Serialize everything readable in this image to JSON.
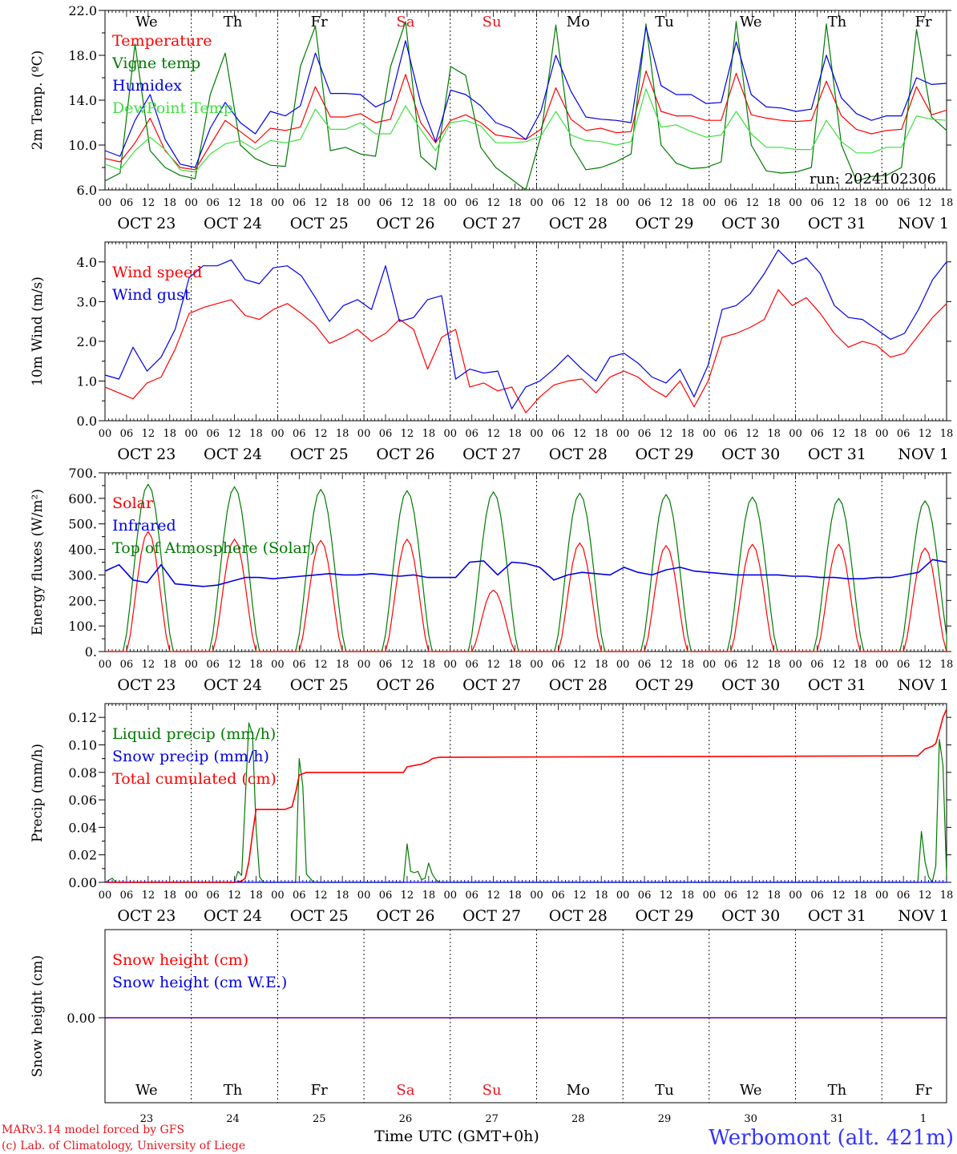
{
  "chart_data": [
    {
      "type": "line",
      "ylabel": "2m Temp. (ºC)",
      "ylim": [
        6.0,
        22.0
      ],
      "yticks": [
        "6.0",
        "10.0",
        "14.0",
        "18.0",
        "22.0"
      ],
      "day_names": [
        "We",
        "Th",
        "Fr",
        "Sa",
        "Su",
        "Mo",
        "Tu",
        "We",
        "Th",
        "Fr"
      ],
      "weekend_color": "#e8141e",
      "run_label": "run: 2024102306",
      "legend_position": "top-left",
      "series": [
        {
          "name": "Temperature",
          "color": "#ff0000",
          "values": [
            8.8,
            8.5,
            10.2,
            12.4,
            9.5,
            8.0,
            7.8,
            10.0,
            12.2,
            11.2,
            10.2,
            11.5,
            11.3,
            11.6,
            15.2,
            12.5,
            12.5,
            12.8,
            12.0,
            12.3,
            16.3,
            12.0,
            10.2,
            12.2,
            12.7,
            12.0,
            10.9,
            10.7,
            10.5,
            11.4,
            15.1,
            12.3,
            11.3,
            11.5,
            11.1,
            11.2,
            16.6,
            13.0,
            12.6,
            12.6,
            12.2,
            12.2,
            16.4,
            12.7,
            12.4,
            12.2,
            12.1,
            12.2,
            15.7,
            12.6,
            11.4,
            11.0,
            11.3,
            11.4,
            15.2,
            12.7,
            13.1
          ]
        },
        {
          "name": "Vigne temp",
          "color": "#007a00",
          "values": [
            6.8,
            7.5,
            19.0,
            9.5,
            8.0,
            7.3,
            7.0,
            14.5,
            18.2,
            10.0,
            8.8,
            8.2,
            8.1,
            17.0,
            20.6,
            9.5,
            9.8,
            9.2,
            9.0,
            17.0,
            21.0,
            9.0,
            7.8,
            17.0,
            16.2,
            9.8,
            8.0,
            7.0,
            6.0,
            10.8,
            20.7,
            10.0,
            7.8,
            8.0,
            8.5,
            9.2,
            20.8,
            10.0,
            8.4,
            7.9,
            8.0,
            8.5,
            21.0,
            10.0,
            7.7,
            7.5,
            7.6,
            8.0,
            20.8,
            10.0,
            6.8,
            7.2,
            7.3,
            8.0,
            20.3,
            12.5,
            11.3
          ]
        },
        {
          "name": "Humidex",
          "color": "#0000e6",
          "values": [
            9.5,
            9.0,
            12.2,
            14.5,
            10.5,
            8.3,
            8.0,
            11.5,
            13.8,
            12.0,
            11.0,
            13.0,
            12.6,
            13.5,
            18.2,
            14.6,
            14.6,
            14.5,
            13.4,
            14.0,
            19.3,
            13.8,
            10.3,
            14.9,
            14.5,
            13.5,
            12.0,
            11.5,
            10.5,
            13.0,
            18.0,
            14.8,
            12.5,
            12.3,
            12.2,
            12.0,
            20.5,
            15.3,
            14.5,
            14.5,
            13.7,
            13.8,
            19.2,
            14.5,
            13.4,
            13.3,
            13.0,
            13.2,
            18.0,
            14.2,
            12.8,
            12.2,
            12.6,
            12.6,
            16.0,
            15.4,
            15.5
          ]
        },
        {
          "name": "DewPoint Temp",
          "color": "#3fe03f",
          "values": [
            8.3,
            7.8,
            9.5,
            10.7,
            9.6,
            7.8,
            7.6,
            9.2,
            10.1,
            10.4,
            9.6,
            10.4,
            10.2,
            10.5,
            13.2,
            11.4,
            11.4,
            12.0,
            11.0,
            11.0,
            13.5,
            11.4,
            9.5,
            12.0,
            12.2,
            11.7,
            10.2,
            10.2,
            10.3,
            10.8,
            13.0,
            10.9,
            10.4,
            10.3,
            10.0,
            10.3,
            15.0,
            11.6,
            11.8,
            11.2,
            10.7,
            10.9,
            13.0,
            11.0,
            9.8,
            9.8,
            9.6,
            9.6,
            12.2,
            10.3,
            9.3,
            9.3,
            9.8,
            9.8,
            12.6,
            12.3,
            12.2
          ]
        }
      ]
    },
    {
      "type": "line",
      "ylabel": "10m Wind (m/s)",
      "ylim": [
        0.0,
        4.5
      ],
      "yticks": [
        "0.0",
        "1.0",
        "2.0",
        "3.0",
        "4.0"
      ],
      "legend_position": "top-left",
      "series": [
        {
          "name": "Wind speed",
          "color": "#ff0000",
          "values": [
            0.85,
            0.7,
            0.55,
            0.95,
            1.1,
            1.8,
            2.7,
            2.85,
            2.95,
            3.05,
            2.65,
            2.55,
            2.8,
            2.95,
            2.7,
            2.4,
            1.95,
            2.1,
            2.3,
            2.0,
            2.2,
            2.55,
            2.3,
            1.3,
            2.1,
            2.3,
            0.85,
            0.95,
            0.75,
            0.85,
            0.2,
            0.6,
            0.9,
            1.0,
            1.05,
            0.7,
            1.1,
            1.25,
            1.1,
            0.8,
            0.6,
            1.0,
            0.35,
            1.0,
            2.1,
            2.2,
            2.35,
            2.55,
            3.3,
            2.9,
            3.1,
            2.7,
            2.2,
            1.85,
            2.0,
            1.9,
            1.6,
            1.7,
            2.15,
            2.6,
            2.95
          ]
        },
        {
          "name": "Wind gust",
          "color": "#0000e6",
          "values": [
            1.15,
            1.05,
            1.85,
            1.25,
            1.6,
            2.3,
            3.6,
            3.9,
            3.9,
            4.05,
            3.55,
            3.45,
            3.85,
            3.9,
            3.65,
            3.1,
            2.5,
            2.9,
            3.05,
            2.8,
            3.9,
            2.5,
            2.6,
            3.05,
            3.15,
            1.05,
            1.3,
            1.2,
            1.25,
            0.3,
            0.85,
            1.0,
            1.3,
            1.65,
            1.3,
            1.0,
            1.6,
            1.7,
            1.45,
            1.1,
            0.95,
            1.3,
            0.6,
            1.4,
            2.8,
            2.9,
            3.2,
            3.7,
            4.3,
            3.95,
            4.1,
            3.7,
            2.9,
            2.6,
            2.55,
            2.3,
            2.05,
            2.2,
            2.8,
            3.55,
            4.0
          ]
        }
      ]
    },
    {
      "type": "line",
      "ylabel": "Energy fluxes (W/m²)",
      "ylim": [
        0,
        700
      ],
      "yticks": [
        "0.",
        "100.",
        "200.",
        "300.",
        "400.",
        "500.",
        "600.",
        "700."
      ],
      "legend_position": "top-left",
      "daily_peaks": {
        "solar": [
          470,
          440,
          435,
          440,
          240,
          425,
          415,
          420,
          420,
          405
        ],
        "top_of_atmosphere": [
          655,
          645,
          635,
          630,
          625,
          620,
          615,
          605,
          600,
          590
        ]
      },
      "series": [
        {
          "name": "Solar",
          "color": "#ff0000"
        },
        {
          "name": "Infrared",
          "color": "#0000e6",
          "values": [
            315,
            340,
            280,
            270,
            340,
            265,
            260,
            255,
            260,
            275,
            290,
            290,
            285,
            290,
            295,
            300,
            305,
            300,
            300,
            305,
            300,
            295,
            300,
            290,
            290,
            290,
            350,
            355,
            300,
            350,
            345,
            330,
            280,
            300,
            310,
            305,
            300,
            330,
            310,
            300,
            320,
            330,
            315,
            310,
            305,
            300,
            300,
            300,
            300,
            295,
            295,
            290,
            290,
            285,
            285,
            290,
            290,
            300,
            310,
            360,
            350
          ]
        },
        {
          "name": "Top of Atmosphere (Solar)",
          "color": "#007a00"
        }
      ]
    },
    {
      "type": "line",
      "ylabel": "Precip (mm/h)",
      "ylim": [
        0.0,
        0.13
      ],
      "yticks": [
        "0.00",
        "0.02",
        "0.04",
        "0.06",
        "0.08",
        "0.10",
        "0.12"
      ],
      "legend_position": "top-left",
      "series": [
        {
          "name": "Liquid precip (mm/h)",
          "color": "#007a00",
          "points": [
            [
              0,
              0
            ],
            [
              2,
              0.003
            ],
            [
              3,
              0
            ],
            [
              36,
              0
            ],
            [
              37,
              0.008
            ],
            [
              38,
              0.005
            ],
            [
              39,
              0.06
            ],
            [
              40,
              0.116
            ],
            [
              41,
              0.108
            ],
            [
              42,
              0.04
            ],
            [
              43,
              0.004
            ],
            [
              44,
              0
            ],
            [
              53,
              0
            ],
            [
              54,
              0.09
            ],
            [
              55,
              0.07
            ],
            [
              56,
              0.006
            ],
            [
              57,
              0.003
            ],
            [
              58,
              0
            ],
            [
              83,
              0
            ],
            [
              84,
              0.028
            ],
            [
              85,
              0.008
            ],
            [
              86,
              0.007
            ],
            [
              87,
              0.008
            ],
            [
              88,
              0.002
            ],
            [
              89,
              0.003
            ],
            [
              90,
              0.014
            ],
            [
              91,
              0.006
            ],
            [
              92,
              0.002
            ],
            [
              93,
              0
            ],
            [
              226,
              0
            ],
            [
              227,
              0.037
            ],
            [
              228,
              0.015
            ],
            [
              229,
              0.004
            ],
            [
              230,
              0
            ],
            [
              231,
              0.012
            ],
            [
              232,
              0.104
            ],
            [
              233,
              0.085
            ],
            [
              234,
              0.005
            ]
          ]
        },
        {
          "name": "Snow precip (mm/h)",
          "color": "#0000e6",
          "points": [
            [
              0,
              0
            ],
            [
              234,
              0
            ]
          ]
        },
        {
          "name": "Total cumulated (cm)",
          "color": "#ff0000",
          "points": [
            [
              0,
              0
            ],
            [
              36,
              0
            ],
            [
              38,
              0.001
            ],
            [
              39,
              0.003
            ],
            [
              40,
              0.015
            ],
            [
              41,
              0.035
            ],
            [
              42,
              0.053
            ],
            [
              50,
              0.053
            ],
            [
              52,
              0.055
            ],
            [
              53,
              0.065
            ],
            [
              54,
              0.078
            ],
            [
              56,
              0.08
            ],
            [
              83,
              0.08
            ],
            [
              84,
              0.084
            ],
            [
              86,
              0.085
            ],
            [
              88,
              0.086
            ],
            [
              90,
              0.088
            ],
            [
              91,
              0.09
            ],
            [
              93,
              0.091
            ],
            [
              226,
              0.092
            ],
            [
              228,
              0.097
            ],
            [
              230,
              0.099
            ],
            [
              231,
              0.101
            ],
            [
              232,
              0.11
            ],
            [
              233,
              0.12
            ],
            [
              234,
              0.126
            ]
          ]
        }
      ]
    },
    {
      "type": "line",
      "ylabel": "Snow height (cm)",
      "ytick": "0.00",
      "legend_position": "top-left",
      "series": [
        {
          "name": "Snow height (cm)",
          "color": "#ff0000",
          "values": [
            0,
            0
          ]
        },
        {
          "name": "Snow height (cm W.E.)",
          "color": "#0000e6",
          "values": [
            0,
            0
          ]
        }
      ],
      "day_names": [
        "We",
        "Th",
        "Fr",
        "Sa",
        "Su",
        "Mo",
        "Tu",
        "We",
        "Th",
        "Fr"
      ],
      "day_numbers": [
        "23",
        "24",
        "25",
        "26",
        "27",
        "28",
        "29",
        "30",
        "31",
        "1"
      ],
      "xlabel": "Time UTC (GMT+0h)"
    }
  ],
  "x_axis": {
    "hour_labels": [
      "00",
      "06",
      "12",
      "18"
    ],
    "date_labels": [
      "OCT 23",
      "OCT 24",
      "OCT 25",
      "OCT 26",
      "OCT 27",
      "OCT 28",
      "OCT 29",
      "OCT 30",
      "OCT 31",
      "NOV  1"
    ]
  },
  "footer": {
    "credit_line1": "MARv3.14 model forced by GFS",
    "credit_line2": "(c) Lab. of Climatology, University of Liege",
    "xlabel": "Time UTC (GMT+0h)",
    "station": "Werbomont (alt. 421m)"
  }
}
